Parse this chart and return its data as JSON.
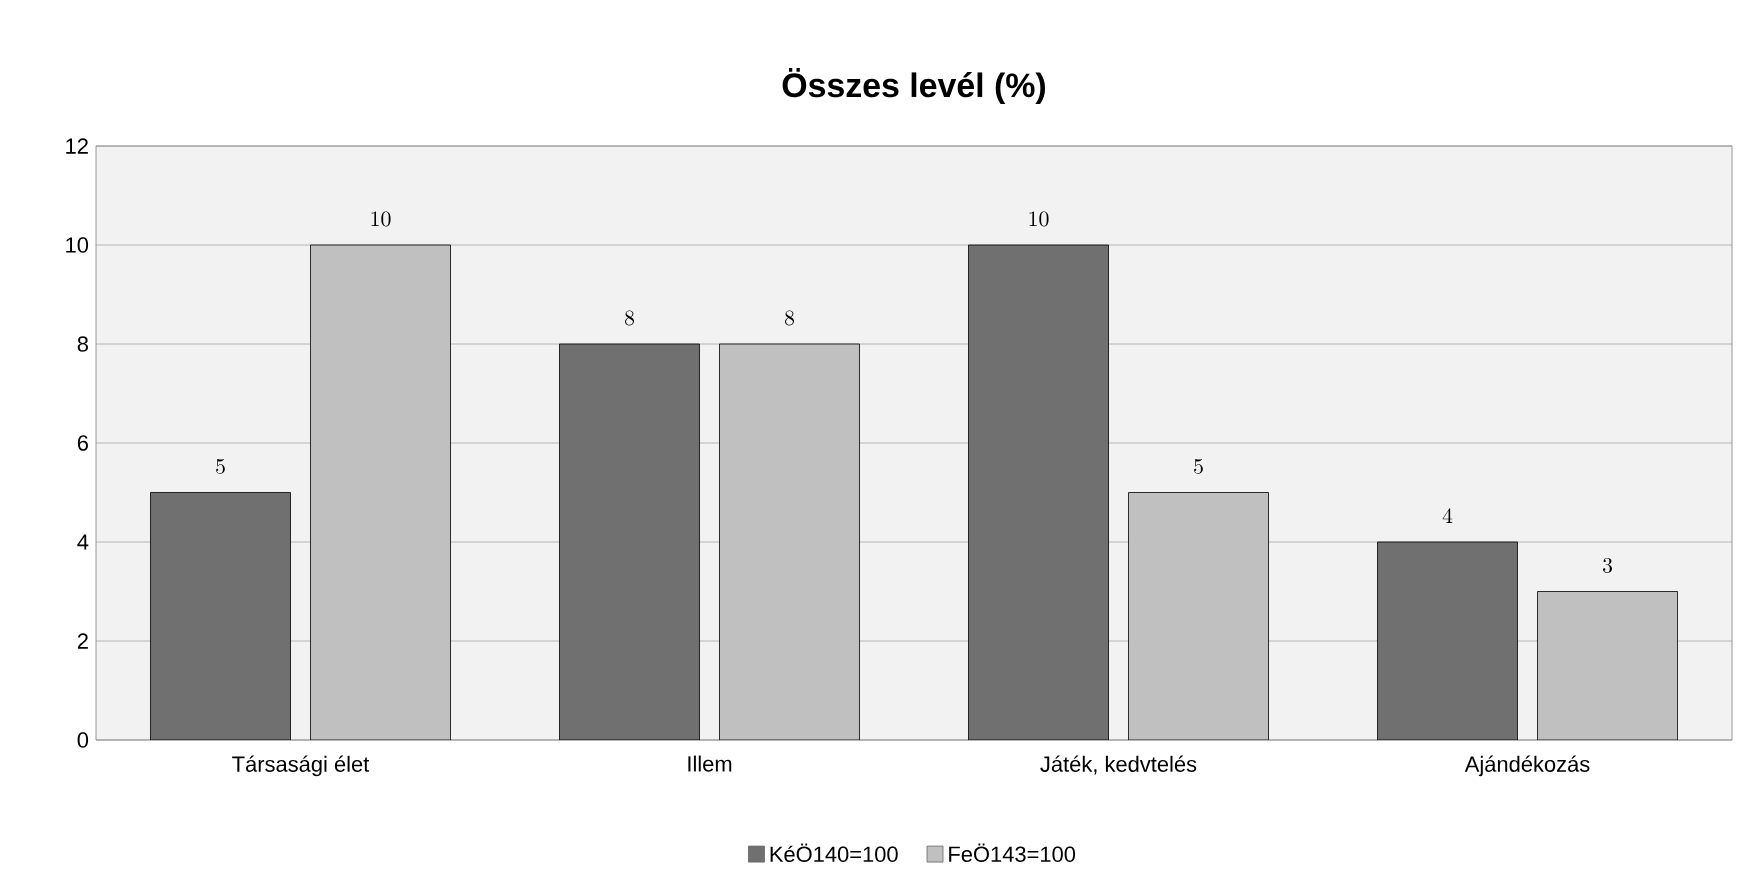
{
  "chart_data": {
    "type": "bar",
    "title": "Összes levél (%)",
    "categories": [
      "Társasági élet",
      "Illem",
      "Játék, kedvtelés",
      "Ajándékozás"
    ],
    "series": [
      {
        "name": "KéÖ140=100",
        "color": "#707070",
        "values": [
          5,
          8,
          10,
          4
        ]
      },
      {
        "name": "FeÖ143=100",
        "color": "#c0c0c0",
        "values": [
          10,
          8,
          5,
          3
        ]
      }
    ],
    "ylim": [
      0,
      12
    ],
    "yticks": [
      0,
      2,
      4,
      6,
      8,
      10,
      12
    ],
    "grid": "y",
    "legend": "bottom",
    "data_labels": true
  }
}
